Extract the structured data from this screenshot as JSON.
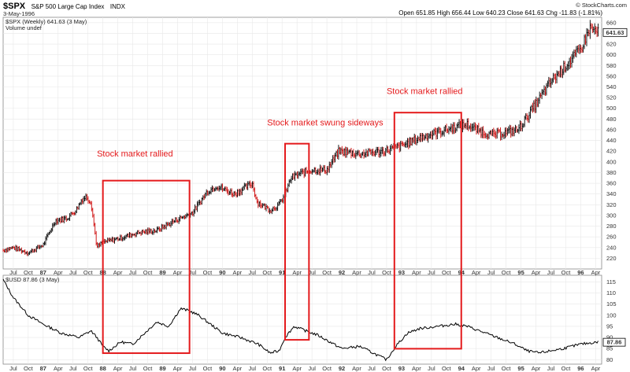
{
  "header": {
    "symbol": "$SPX",
    "name": "S&P 500 Large Cap Index",
    "exchange": "INDX",
    "date": "3-May-1996",
    "ohlc": "Open 651.85  High 656.44  Low 640.23  Close 641.63  Chg -11.83 (-1.81%)",
    "copyright": "© StockCharts.com"
  },
  "chart_data": [
    {
      "type": "line",
      "legend": [
        "$SPX (Weekly) 641.63 (3 May)",
        "Volume undef"
      ],
      "last_value": "641.63",
      "ylim": [
        200,
        670
      ],
      "yticks": [
        220,
        240,
        260,
        280,
        300,
        320,
        340,
        360,
        380,
        400,
        420,
        440,
        460,
        480,
        500,
        520,
        540,
        560,
        580,
        600,
        620,
        640,
        660
      ],
      "x": [
        1986.33,
        1986.5,
        1986.75,
        1987.0,
        1987.2,
        1987.4,
        1987.55,
        1987.65,
        1987.72,
        1987.8,
        1987.9,
        1988.0,
        1988.3,
        1988.6,
        1988.9,
        1989.2,
        1989.5,
        1989.75,
        1989.9,
        1990.2,
        1990.5,
        1990.58,
        1990.8,
        1990.95,
        1991.05,
        1991.15,
        1991.3,
        1991.5,
        1991.75,
        1991.95,
        1992.3,
        1992.7,
        1993.0,
        1993.3,
        1993.6,
        1993.9,
        1994.1,
        1994.25,
        1994.5,
        1994.75,
        1994.95,
        1995.2,
        1995.5,
        1995.75,
        1996.0,
        1996.15,
        1996.3
      ],
      "y": [
        235,
        240,
        230,
        245,
        290,
        295,
        310,
        330,
        335,
        325,
        240,
        250,
        258,
        268,
        272,
        290,
        305,
        345,
        355,
        340,
        360,
        325,
        310,
        320,
        340,
        370,
        378,
        385,
        385,
        420,
        415,
        420,
        430,
        445,
        455,
        465,
        470,
        460,
        450,
        455,
        460,
        500,
        550,
        580,
        610,
        650,
        641
      ]
    },
    {
      "type": "line",
      "legend": [
        "$USD 87.86 (3 May)"
      ],
      "last_value": "87.86",
      "ylim": [
        78,
        118
      ],
      "yticks": [
        80,
        85,
        90,
        95,
        100,
        105,
        110,
        115
      ],
      "x": [
        1986.33,
        1986.5,
        1986.75,
        1987.0,
        1987.3,
        1987.6,
        1987.8,
        1987.9,
        1988.0,
        1988.1,
        1988.3,
        1988.5,
        1988.7,
        1988.9,
        1989.1,
        1989.3,
        1989.45,
        1989.6,
        1989.8,
        1990.0,
        1990.3,
        1990.6,
        1990.8,
        1990.95,
        1991.05,
        1991.2,
        1991.4,
        1991.6,
        1991.8,
        1992.0,
        1992.3,
        1992.6,
        1992.75,
        1992.9,
        1993.1,
        1993.3,
        1993.6,
        1993.9,
        1994.1,
        1994.3,
        1994.6,
        1994.9,
        1995.1,
        1995.3,
        1995.5,
        1995.7,
        1996.0,
        1996.3
      ],
      "y": [
        116,
        108,
        100,
        96,
        92,
        90,
        93,
        90,
        86,
        84,
        88,
        87,
        92,
        97,
        95,
        103,
        102,
        100,
        96,
        92,
        90,
        87,
        83,
        84,
        90,
        95,
        93,
        91,
        88,
        85,
        86,
        82,
        80,
        86,
        92,
        94,
        95,
        96,
        95,
        93,
        90,
        87,
        84,
        83,
        84,
        85,
        87,
        88
      ]
    }
  ],
  "x_axis": {
    "labels": [
      {
        "t": 1986.5,
        "label": "Jul",
        "bold": false
      },
      {
        "t": 1986.75,
        "label": "Oct",
        "bold": false
      },
      {
        "t": 1987.0,
        "label": "87",
        "bold": true
      },
      {
        "t": 1987.25,
        "label": "Apr",
        "bold": false
      },
      {
        "t": 1987.5,
        "label": "Jul",
        "bold": false
      },
      {
        "t": 1987.75,
        "label": "Oct",
        "bold": false
      },
      {
        "t": 1988.0,
        "label": "88",
        "bold": true
      },
      {
        "t": 1988.25,
        "label": "Apr",
        "bold": false
      },
      {
        "t": 1988.5,
        "label": "Jul",
        "bold": false
      },
      {
        "t": 1988.75,
        "label": "Oct",
        "bold": false
      },
      {
        "t": 1989.0,
        "label": "89",
        "bold": true
      },
      {
        "t": 1989.25,
        "label": "Apr",
        "bold": false
      },
      {
        "t": 1989.5,
        "label": "Jul",
        "bold": false
      },
      {
        "t": 1989.75,
        "label": "Oct",
        "bold": false
      },
      {
        "t": 1990.0,
        "label": "90",
        "bold": true
      },
      {
        "t": 1990.25,
        "label": "Apr",
        "bold": false
      },
      {
        "t": 1990.5,
        "label": "Jul",
        "bold": false
      },
      {
        "t": 1990.75,
        "label": "Oct",
        "bold": false
      },
      {
        "t": 1991.0,
        "label": "91",
        "bold": true
      },
      {
        "t": 1991.25,
        "label": "Apr",
        "bold": false
      },
      {
        "t": 1991.5,
        "label": "Jul",
        "bold": false
      },
      {
        "t": 1991.75,
        "label": "Oct",
        "bold": false
      },
      {
        "t": 1992.0,
        "label": "92",
        "bold": true
      },
      {
        "t": 1992.25,
        "label": "Apr",
        "bold": false
      },
      {
        "t": 1992.5,
        "label": "Jul",
        "bold": false
      },
      {
        "t": 1992.75,
        "label": "Oct",
        "bold": false
      },
      {
        "t": 1993.0,
        "label": "93",
        "bold": true
      },
      {
        "t": 1993.25,
        "label": "Apr",
        "bold": false
      },
      {
        "t": 1993.5,
        "label": "Jul",
        "bold": false
      },
      {
        "t": 1993.75,
        "label": "Oct",
        "bold": false
      },
      {
        "t": 1994.0,
        "label": "94",
        "bold": true
      },
      {
        "t": 1994.25,
        "label": "Apr",
        "bold": false
      },
      {
        "t": 1994.5,
        "label": "Jul",
        "bold": false
      },
      {
        "t": 1994.75,
        "label": "Oct",
        "bold": false
      },
      {
        "t": 1995.0,
        "label": "95",
        "bold": true
      },
      {
        "t": 1995.25,
        "label": "Apr",
        "bold": false
      },
      {
        "t": 1995.5,
        "label": "Jul",
        "bold": false
      },
      {
        "t": 1995.75,
        "label": "Oct",
        "bold": false
      },
      {
        "t": 1996.0,
        "label": "96",
        "bold": true
      },
      {
        "t": 1996.25,
        "label": "Apr",
        "bold": false
      }
    ]
  },
  "annotations": [
    {
      "text": "Stock market rallied",
      "t": 1987.9,
      "y": 410
    },
    {
      "text": "Stock market swung sideways",
      "t": 1990.75,
      "y": 468
    },
    {
      "text": "Stock market rallied",
      "t": 1992.75,
      "y": 527
    }
  ],
  "highlight_boxes": [
    {
      "t_start": 1988.0,
      "t_end": 1989.45,
      "price_top": 365
    },
    {
      "t_start": 1991.05,
      "t_end": 1991.45,
      "price_top": 434
    },
    {
      "t_start": 1992.88,
      "t_end": 1994.0,
      "price_top": 492
    }
  ],
  "colors": {
    "up": "#000000",
    "down": "#cc0000",
    "usd_line": "#000000",
    "highlight": "#e41a1c",
    "grid": "#e8e8e8"
  }
}
